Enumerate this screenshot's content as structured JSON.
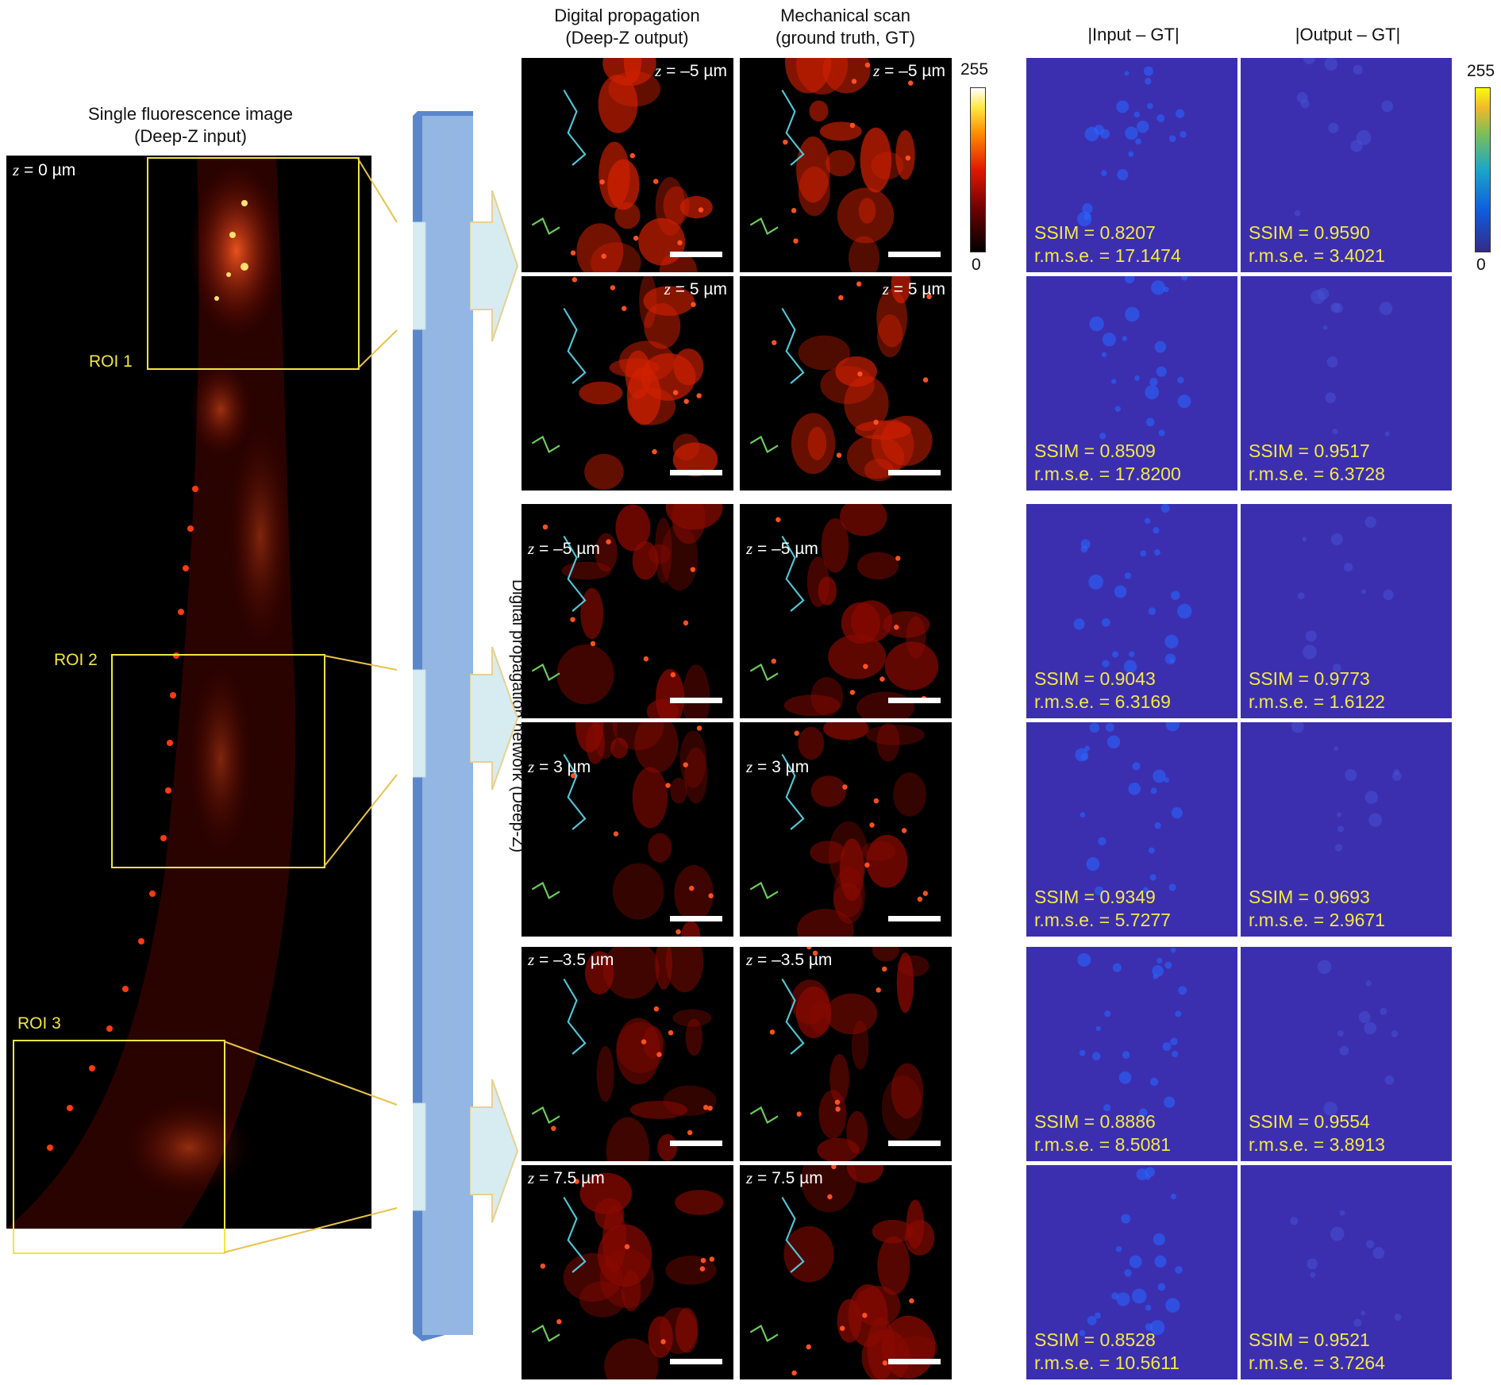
{
  "left": {
    "title_line1": "Single fluorescence image",
    "title_line2": "(Deep-Z input)",
    "z_label": "= 0 µm",
    "roi_labels": [
      "ROI 1",
      "ROI 2",
      "ROI 3"
    ]
  },
  "network_label": "Digital propagation network (Deep-Z)",
  "headers": {
    "col1_line1": "Digital propagation",
    "col1_line2": "(Deep-Z output)",
    "col2_line1": "Mechanical scan",
    "col2_line2": "(ground truth, GT)",
    "col3": "|Input – GT|",
    "col4": "|Output – GT|"
  },
  "colorbars": {
    "hot": {
      "max": "255",
      "min": "0"
    },
    "parula": {
      "max": "255",
      "min": "0"
    }
  },
  "z_var": "z",
  "rows": [
    {
      "z": "= –5 µm",
      "in_ssim": "SSIM = 0.8207",
      "in_rmse": "r.m.s.e. = 17.1474",
      "out_ssim": "SSIM = 0.9590",
      "out_rmse": "r.m.s.e. = 3.4021"
    },
    {
      "z": "= 5 µm",
      "in_ssim": "SSIM = 0.8509",
      "in_rmse": "r.m.s.e. = 17.8200",
      "out_ssim": "SSIM = 0.9517",
      "out_rmse": "r.m.s.e. = 6.3728"
    },
    {
      "z": "= –5 µm",
      "in_ssim": "SSIM = 0.9043",
      "in_rmse": "r.m.s.e. = 6.3169",
      "out_ssim": "SSIM = 0.9773",
      "out_rmse": "r.m.s.e. = 1.6122"
    },
    {
      "z": "= 3 µm",
      "in_ssim": "SSIM = 0.9349",
      "in_rmse": "r.m.s.e. = 5.7277",
      "out_ssim": "SSIM = 0.9693",
      "out_rmse": "r.m.s.e. = 2.9671"
    },
    {
      "z": "= –3.5 µm",
      "in_ssim": "SSIM = 0.8886",
      "in_rmse": "r.m.s.e. = 8.5081",
      "out_ssim": "SSIM = 0.9554",
      "out_rmse": "r.m.s.e. = 3.8913"
    },
    {
      "z": "= 7.5 µm",
      "in_ssim": "SSIM = 0.8528",
      "in_rmse": "r.m.s.e. = 10.5611",
      "out_ssim": "SSIM = 0.9521",
      "out_rmse": "r.m.s.e. = 3.7264"
    }
  ],
  "colors": {
    "roi_box": "#f1e640",
    "cyan_trace": "#4fc8d8",
    "green_trace": "#6ccf5a",
    "network_bar": "#93b6e2",
    "arrow": "#d6ecf0",
    "error_bg": "#3b2fb0"
  }
}
